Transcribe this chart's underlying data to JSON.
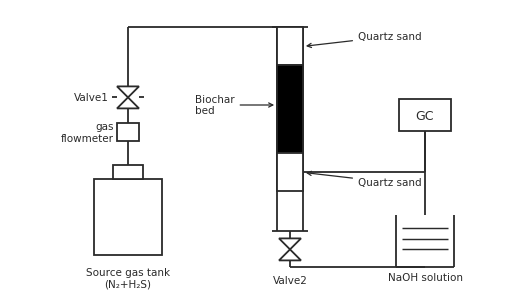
{
  "bg_color": "#ffffff",
  "line_color": "#2a2a2a",
  "lw": 1.3,
  "labels": {
    "valve1": "Valve1",
    "gas_flowmeter": "gas\nflowmeter",
    "source_gas_tank": "Source gas tank\n(N₂+H₂S)",
    "biochar_bed": "Biochar\nbed",
    "quartz_sand_top": "Quartz sand",
    "quartz_sand_bot": "Quartz sand",
    "valve2": "Valve2",
    "gc": "GC",
    "naoh": "NaOH solution"
  },
  "font_size": 7.5
}
